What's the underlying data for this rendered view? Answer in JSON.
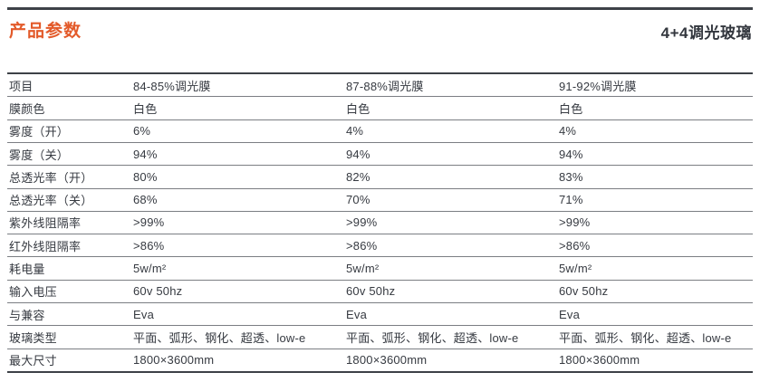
{
  "header": {
    "title": "产品参数",
    "product": "4+4调光玻璃"
  },
  "colors": {
    "accent": "#e35a2a",
    "text": "#363a41",
    "separator": "#7b7e83",
    "border": "#3d4147"
  },
  "table": {
    "columns": [
      "项目",
      "84-85%调光膜",
      "87-88%调光膜",
      "91-92%调光膜"
    ],
    "rows": [
      {
        "label": "膜颜色",
        "values": [
          "白色",
          "白色",
          "白色"
        ]
      },
      {
        "label": "雾度（开）",
        "values": [
          "6%",
          "4%",
          "4%"
        ]
      },
      {
        "label": "雾度（关）",
        "values": [
          "94%",
          "94%",
          "94%"
        ]
      },
      {
        "label": "总透光率（开）",
        "values": [
          "80%",
          "82%",
          "83%"
        ]
      },
      {
        "label": "总透光率（关）",
        "values": [
          "68%",
          "70%",
          "71%"
        ]
      },
      {
        "label": "紫外线阻隔率",
        "values": [
          ">99%",
          ">99%",
          ">99%"
        ]
      },
      {
        "label": "红外线阻隔率",
        "values": [
          ">86%",
          ">86%",
          ">86%"
        ]
      },
      {
        "label": "耗电量",
        "values": [
          "5w/m²",
          "5w/m²",
          "5w/m²"
        ]
      },
      {
        "label": "输入电压",
        "values": [
          "60v 50hz",
          "60v 50hz",
          "60v 50hz"
        ]
      },
      {
        "label": "与兼容",
        "values": [
          "Eva",
          "Eva",
          "Eva"
        ]
      },
      {
        "label": "玻璃类型",
        "values": [
          "平面、弧形、钢化、超透、low-e",
          "平面、弧形、钢化、超透、low-e",
          "平面、弧形、钢化、超透、low-e"
        ]
      },
      {
        "label": "最大尺寸",
        "values": [
          "1800×3600mm",
          "1800×3600mm",
          "1800×3600mm"
        ]
      }
    ]
  }
}
